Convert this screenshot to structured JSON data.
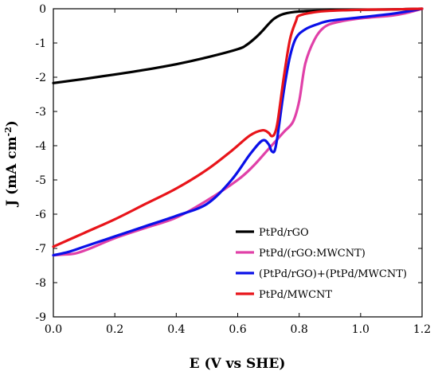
{
  "chart_data": {
    "type": "line",
    "title": "",
    "xlabel": "E (V vs SHE)",
    "ylabel_main": "J (mA cm",
    "ylabel_sup": "-2",
    "ylabel_close": ")",
    "xlim": [
      0,
      1.2
    ],
    "ylim": [
      -9,
      0
    ],
    "xticks": [
      0,
      0.2,
      0.4,
      0.6,
      0.8,
      1.0,
      1.2
    ],
    "xtick_labels": [
      "0.0",
      "0.2",
      "0.4",
      "0.6",
      "0.8",
      "1.0",
      "1.2"
    ],
    "yticks": [
      0,
      -1,
      -2,
      -3,
      -4,
      -5,
      -6,
      -7,
      -8,
      -9
    ],
    "ytick_labels": [
      "0",
      "-1",
      "-2",
      "-3",
      "-4",
      "-5",
      "-6",
      "-7",
      "-8",
      "-9"
    ],
    "grid": false,
    "legend_position": "bottom-right",
    "series": [
      {
        "name": "PtPd/rGO",
        "color": "#000000",
        "x": [
          0.0,
          0.1,
          0.2,
          0.3,
          0.4,
          0.5,
          0.6,
          0.63,
          0.66,
          0.68,
          0.7,
          0.72,
          0.75,
          0.8,
          0.9,
          1.0,
          1.1,
          1.2
        ],
        "y": [
          -2.17,
          -2.05,
          -1.92,
          -1.78,
          -1.62,
          -1.42,
          -1.18,
          -1.05,
          -0.83,
          -0.65,
          -0.45,
          -0.28,
          -0.15,
          -0.08,
          -0.05,
          -0.03,
          -0.02,
          0.0
        ]
      },
      {
        "name": "PtPd/(rGO:MWCNT)",
        "color": "#e040a8",
        "x": [
          0.0,
          0.03,
          0.07,
          0.12,
          0.2,
          0.3,
          0.4,
          0.5,
          0.6,
          0.65,
          0.7,
          0.75,
          0.78,
          0.8,
          0.82,
          0.85,
          0.88,
          0.92,
          1.0,
          1.1,
          1.15,
          1.2
        ],
        "y": [
          -7.2,
          -7.18,
          -7.15,
          -7.0,
          -6.7,
          -6.4,
          -6.1,
          -5.6,
          -5.0,
          -4.6,
          -4.1,
          -3.6,
          -3.3,
          -2.7,
          -1.6,
          -0.9,
          -0.55,
          -0.4,
          -0.28,
          -0.2,
          -0.12,
          0.0
        ]
      },
      {
        "name": "(PtPd/rGO)+(PtPd/MWCNT)",
        "color": "#0a10e8",
        "x": [
          0.0,
          0.05,
          0.1,
          0.2,
          0.3,
          0.4,
          0.5,
          0.58,
          0.64,
          0.68,
          0.7,
          0.71,
          0.72,
          0.73,
          0.75,
          0.77,
          0.79,
          0.82,
          0.86,
          0.9,
          1.0,
          1.1,
          1.15,
          1.2
        ],
        "y": [
          -7.2,
          -7.1,
          -6.95,
          -6.65,
          -6.35,
          -6.05,
          -5.7,
          -5.0,
          -4.25,
          -3.85,
          -3.95,
          -4.15,
          -4.15,
          -3.7,
          -2.4,
          -1.4,
          -0.85,
          -0.6,
          -0.45,
          -0.35,
          -0.25,
          -0.15,
          -0.08,
          0.0
        ]
      },
      {
        "name": "PtPd/MWCNT",
        "color": "#e8141a",
        "x": [
          0.0,
          0.1,
          0.2,
          0.3,
          0.4,
          0.5,
          0.58,
          0.64,
          0.68,
          0.7,
          0.71,
          0.72,
          0.73,
          0.75,
          0.77,
          0.79,
          0.8,
          0.85,
          0.9,
          1.0,
          1.1,
          1.2
        ],
        "y": [
          -6.95,
          -6.55,
          -6.15,
          -5.7,
          -5.25,
          -4.7,
          -4.15,
          -3.7,
          -3.55,
          -3.62,
          -3.72,
          -3.65,
          -3.3,
          -2.0,
          -0.9,
          -0.35,
          -0.2,
          -0.1,
          -0.06,
          -0.03,
          -0.02,
          0.0
        ]
      }
    ]
  }
}
